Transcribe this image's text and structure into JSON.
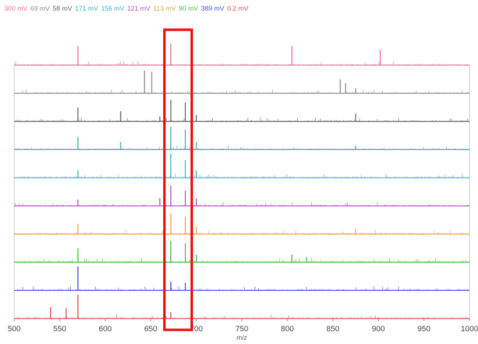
{
  "chart_data": {
    "type": "line",
    "xlabel": "m/z",
    "xlim": [
      500,
      1000
    ],
    "xticks": [
      500,
      550,
      600,
      650,
      700,
      750,
      800,
      850,
      900,
      950,
      1000
    ],
    "highlight_range": [
      665,
      695
    ],
    "series": [
      {
        "name": "300 mV",
        "color": "#f06a8c",
        "peaks": [
          [
            570,
            0.75
          ],
          [
            672,
            0.85
          ],
          [
            805,
            0.75
          ],
          [
            902,
            0.6
          ]
        ]
      },
      {
        "name": "69 mV",
        "color": "#8c8c8c",
        "peaks": [
          [
            643,
            0.9
          ],
          [
            651,
            0.85
          ],
          [
            858,
            0.55
          ],
          [
            864,
            0.4
          ],
          [
            875,
            0.2
          ]
        ]
      },
      {
        "name": "58 mV",
        "color": "#666666",
        "peaks": [
          [
            570,
            0.55
          ],
          [
            617,
            0.4
          ],
          [
            660,
            0.2
          ],
          [
            672,
            0.85
          ],
          [
            688,
            0.75
          ],
          [
            700,
            0.25
          ],
          [
            875,
            0.3
          ]
        ]
      },
      {
        "name": "171 mV",
        "color": "#30b8a8",
        "peaks": [
          [
            570,
            0.5
          ],
          [
            617,
            0.3
          ],
          [
            672,
            0.9
          ],
          [
            688,
            0.8
          ],
          [
            700,
            0.3
          ],
          [
            875,
            0.15
          ]
        ]
      },
      {
        "name": "156 mV",
        "color": "#30b8c8",
        "peaks": [
          [
            570,
            0.3
          ],
          [
            672,
            0.95
          ],
          [
            688,
            0.7
          ],
          [
            700,
            0.3
          ]
        ]
      },
      {
        "name": "121 mV",
        "color": "#b04cc0",
        "peaks": [
          [
            570,
            0.25
          ],
          [
            660,
            0.3
          ],
          [
            672,
            0.8
          ],
          [
            688,
            0.6
          ],
          [
            700,
            0.3
          ]
        ]
      },
      {
        "name": "113 mV",
        "color": "#f0a040",
        "peaks": [
          [
            570,
            0.4
          ],
          [
            672,
            0.8
          ],
          [
            688,
            0.7
          ],
          [
            700,
            0.3
          ],
          [
            875,
            0.2
          ]
        ]
      },
      {
        "name": "90 mV",
        "color": "#40c040",
        "peaks": [
          [
            570,
            0.55
          ],
          [
            672,
            0.85
          ],
          [
            688,
            0.75
          ],
          [
            700,
            0.3
          ],
          [
            805,
            0.3
          ],
          [
            821,
            0.2
          ]
        ]
      },
      {
        "name": "389 mV",
        "color": "#4848e0",
        "peaks": [
          [
            570,
            0.95
          ],
          [
            672,
            0.35
          ],
          [
            688,
            0.3
          ]
        ]
      },
      {
        "name": "0.2 mV",
        "color": "#e84848",
        "peaks": [
          [
            540,
            0.45
          ],
          [
            557,
            0.4
          ],
          [
            570,
            0.95
          ],
          [
            672,
            0.25
          ]
        ]
      }
    ]
  }
}
